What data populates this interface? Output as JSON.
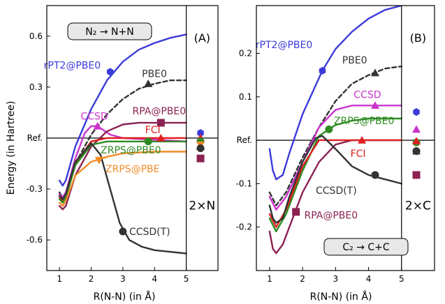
{
  "chart_data": [
    {
      "type": "line",
      "panel_label": "(A)",
      "title_box": "N₂ → N+N",
      "xlabel": "R(N-N) (in Å)",
      "ylabel": "Energy (in Hartree)",
      "xlim": [
        0.6,
        6.0
      ],
      "ylim": [
        -0.78,
        0.78
      ],
      "xticks": [
        "1",
        "2",
        "3",
        "4",
        "5"
      ],
      "xtick_values": [
        1,
        2,
        3,
        4,
        5
      ],
      "yticks": [
        "0.6",
        "0.3",
        "Ref.",
        "-0.3",
        "-0.6"
      ],
      "ytick_values": [
        0.6,
        0.3,
        0.0,
        -0.3,
        -0.6
      ],
      "ref_label": "Ref.",
      "separator_x": 5.0,
      "separated_label": "2×N",
      "series": [
        {
          "name": "rPT2@PBE0",
          "color": "#3b3bd9",
          "dash": false,
          "x": [
            1.0,
            1.1,
            1.2,
            1.5,
            2.0,
            2.5,
            3.0,
            3.5,
            4.0,
            4.5,
            5.0
          ],
          "y": [
            -0.25,
            -0.28,
            -0.25,
            -0.05,
            0.17,
            0.34,
            0.45,
            0.52,
            0.56,
            0.59,
            0.61
          ],
          "marker": "hexagon",
          "marker_x": 2.6,
          "marker_y": 0.39,
          "label_x": 2.3,
          "label_y": 0.43,
          "label_anchor": "end",
          "asymptote": 0.03
        },
        {
          "name": "PBE0",
          "color": "#333333",
          "dash": true,
          "x": [
            1.0,
            1.1,
            1.2,
            1.5,
            2.0,
            2.5,
            3.0,
            3.5,
            4.0,
            4.5,
            5.0
          ],
          "y": [
            -0.32,
            -0.35,
            -0.32,
            -0.15,
            0.02,
            0.14,
            0.23,
            0.29,
            0.32,
            0.34,
            0.34
          ],
          "marker": "triangle",
          "marker_x": 3.8,
          "marker_y": 0.32,
          "label_x": 3.6,
          "label_y": 0.38,
          "label_anchor": "start",
          "asymptote": -0.05
        },
        {
          "name": "CCSD",
          "color": "#cc33cc",
          "dash": false,
          "x": [
            1.0,
            1.1,
            1.2,
            1.5,
            1.8,
            2.0,
            2.2,
            2.6,
            3.0,
            4.0,
            5.0
          ],
          "y": [
            -0.33,
            -0.35,
            -0.32,
            -0.12,
            0.03,
            0.07,
            0.07,
            0.02,
            0.0,
            -0.01,
            -0.02
          ],
          "marker": "triangle",
          "marker_x": 2.2,
          "marker_y": 0.07,
          "label_x": 2.1,
          "label_y": 0.13,
          "label_anchor": "middle",
          "asymptote": 0.0
        },
        {
          "name": "RPA@PBE0",
          "color": "#8b2252",
          "dash": false,
          "x": [
            1.0,
            1.1,
            1.2,
            1.5,
            2.0,
            2.5,
            3.0,
            3.5,
            4.0,
            4.5,
            5.0
          ],
          "y": [
            -0.4,
            -0.42,
            -0.4,
            -0.22,
            -0.05,
            0.04,
            0.08,
            0.09,
            0.09,
            0.09,
            0.09
          ],
          "marker": "square",
          "marker_x": 4.2,
          "marker_y": 0.09,
          "label_x": 3.3,
          "label_y": 0.16,
          "label_anchor": "start",
          "asymptote": -0.12
        },
        {
          "name": "FCI",
          "color": "#e02020",
          "dash": false,
          "x": [
            1.0,
            1.1,
            1.2,
            1.5,
            2.0,
            2.5,
            3.0,
            4.0,
            5.0
          ],
          "y": [
            -0.35,
            -0.37,
            -0.34,
            -0.15,
            -0.02,
            0.0,
            0.0,
            0.0,
            0.0
          ],
          "marker": "triangle",
          "marker_x": 4.2,
          "marker_y": 0.0,
          "label_x": 3.7,
          "label_y": 0.05,
          "label_anchor": "start",
          "asymptote": 0.0
        },
        {
          "name": "ZRPS@PBE0",
          "color": "#2e8b22",
          "dash": false,
          "x": [
            1.0,
            1.1,
            1.2,
            1.5,
            2.0,
            2.5,
            3.0,
            4.0,
            5.0
          ],
          "y": [
            -0.36,
            -0.38,
            -0.35,
            -0.16,
            -0.04,
            -0.02,
            -0.02,
            -0.02,
            -0.02
          ],
          "marker": "circle",
          "marker_x": 3.8,
          "marker_y": -0.02,
          "label_x": 2.3,
          "label_y": -0.07,
          "label_anchor": "start",
          "asymptote": -0.02
        },
        {
          "name": "ZRPS@PBE",
          "color": "#f28c28",
          "dash": false,
          "x": [
            1.0,
            1.1,
            1.2,
            1.5,
            2.0,
            2.5,
            3.0,
            4.0,
            5.0
          ],
          "y": [
            -0.38,
            -0.4,
            -0.37,
            -0.22,
            -0.14,
            -0.11,
            -0.09,
            -0.08,
            -0.08
          ],
          "marker": "triangle-down",
          "marker_x": 2.25,
          "marker_y": -0.13,
          "label_x": 2.45,
          "label_y": -0.18,
          "label_anchor": "start",
          "asymptote": -0.04
        },
        {
          "name": "CCSD(T)",
          "color": "#333333",
          "dash": false,
          "x": [
            1.0,
            1.1,
            1.2,
            1.5,
            2.0,
            2.3,
            2.6,
            2.9,
            3.2,
            3.6,
            4.0,
            4.5,
            5.0
          ],
          "y": [
            -0.34,
            -0.36,
            -0.33,
            -0.14,
            -0.03,
            -0.1,
            -0.3,
            -0.5,
            -0.6,
            -0.64,
            -0.66,
            -0.67,
            -0.68
          ],
          "marker": "circle",
          "marker_x": 3.0,
          "marker_y": -0.55,
          "label_x": 3.2,
          "label_y": -0.55,
          "label_anchor": "start",
          "asymptote": -0.06
        }
      ]
    },
    {
      "type": "line",
      "panel_label": "(B)",
      "title_box": "C₂ → C+C",
      "xlabel": "R(N-N) (in Å)",
      "ylabel": "",
      "xlim": [
        0.6,
        6.0
      ],
      "ylim": [
        -0.3,
        0.31
      ],
      "xticks": [
        "1",
        "2",
        "3",
        "4",
        "5"
      ],
      "xtick_values": [
        1,
        2,
        3,
        4,
        5
      ],
      "yticks": [
        "0.2",
        "0.1",
        "Ref.",
        "-0.1",
        "-0.2"
      ],
      "ytick_values": [
        0.2,
        0.1,
        0.0,
        -0.1,
        -0.2
      ],
      "ref_label": "Ref.",
      "separator_x": 5.0,
      "separated_label": "2×C",
      "series": [
        {
          "name": "rPT2@PBE0",
          "color": "#3b3bd9",
          "dash": false,
          "x": [
            1.0,
            1.1,
            1.2,
            1.4,
            1.6,
            2.0,
            2.6,
            3.0,
            3.5,
            4.0,
            4.5,
            5.0
          ],
          "y": [
            -0.02,
            -0.07,
            -0.09,
            -0.08,
            -0.03,
            0.06,
            0.16,
            0.21,
            0.25,
            0.28,
            0.3,
            0.31
          ],
          "marker": "hexagon",
          "marker_x": 2.6,
          "marker_y": 0.16,
          "label_x": 2.3,
          "label_y": 0.22,
          "label_anchor": "end",
          "asymptote": 0.065
        },
        {
          "name": "PBE0",
          "color": "#333333",
          "dash": true,
          "x": [
            1.0,
            1.2,
            1.5,
            2.0,
            2.5,
            3.0,
            3.5,
            4.0,
            4.5,
            5.0
          ],
          "y": [
            -0.12,
            -0.15,
            -0.12,
            -0.04,
            0.03,
            0.09,
            0.13,
            0.15,
            0.165,
            0.17
          ],
          "marker": "triangle",
          "marker_x": 4.2,
          "marker_y": 0.155,
          "label_x": 3.2,
          "label_y": 0.185,
          "label_anchor": "start",
          "asymptote": -0.025
        },
        {
          "name": "CCSD",
          "color": "#cc33cc",
          "dash": false,
          "x": [
            1.0,
            1.2,
            1.5,
            2.0,
            2.5,
            3.0,
            3.5,
            4.0,
            4.5,
            5.0
          ],
          "y": [
            -0.13,
            -0.16,
            -0.13,
            -0.05,
            0.03,
            0.07,
            0.08,
            0.08,
            0.08,
            0.08
          ],
          "marker": "triangle",
          "marker_x": 4.2,
          "marker_y": 0.08,
          "label_x": 3.55,
          "label_y": 0.105,
          "label_anchor": "start",
          "asymptote": 0.025
        },
        {
          "name": "ZRPS@PBE0",
          "color": "#2e8b22",
          "dash": false,
          "x": [
            1.0,
            1.2,
            1.5,
            2.0,
            2.5,
            3.0,
            3.5,
            4.0,
            4.5,
            5.0
          ],
          "y": [
            -0.18,
            -0.21,
            -0.17,
            -0.07,
            0.01,
            0.035,
            0.045,
            0.05,
            0.05,
            0.05
          ],
          "marker": "circle",
          "marker_x": 2.8,
          "marker_y": 0.025,
          "label_x": 2.95,
          "label_y": 0.045,
          "label_anchor": "start",
          "asymptote": -0.005
        },
        {
          "name": "RPA@PBE0",
          "color": "#8b2252",
          "dash": false,
          "x": [
            1.0,
            1.1,
            1.2,
            1.4,
            1.6,
            2.0,
            2.5,
            3.0,
            3.5,
            4.0,
            4.5,
            5.0
          ],
          "y": [
            -0.21,
            -0.25,
            -0.26,
            -0.24,
            -0.2,
            -0.12,
            -0.05,
            -0.01,
            0.0,
            0.0,
            0.0,
            0.0
          ],
          "marker": "square",
          "marker_x": 1.8,
          "marker_y": -0.165,
          "label_x": 2.05,
          "label_y": -0.172,
          "label_anchor": "start",
          "asymptote": -0.08
        },
        {
          "name": "FCI",
          "color": "#e02020",
          "dash": false,
          "x": [
            1.0,
            1.2,
            1.5,
            2.0,
            2.5,
            3.0,
            4.0,
            5.0
          ],
          "y": [
            -0.17,
            -0.2,
            -0.16,
            -0.06,
            0.0,
            0.0,
            0.0,
            0.0
          ],
          "marker": "triangle",
          "marker_x": 3.8,
          "marker_y": 0.0,
          "label_x": 3.45,
          "label_y": -0.03,
          "label_anchor": "start",
          "asymptote": -0.002
        },
        {
          "name": "CCSD(T)",
          "color": "#333333",
          "dash": false,
          "x": [
            1.0,
            1.1,
            1.2,
            1.4,
            1.6,
            2.0,
            2.4,
            2.6,
            3.0,
            3.5,
            4.0,
            4.5,
            5.0
          ],
          "y": [
            -0.15,
            -0.18,
            -0.19,
            -0.18,
            -0.13,
            -0.05,
            0.005,
            0.01,
            -0.02,
            -0.06,
            -0.08,
            -0.09,
            -0.1
          ],
          "marker": "circle",
          "marker_x": 4.2,
          "marker_y": -0.08,
          "label_x": 2.4,
          "label_y": -0.115,
          "label_anchor": "start",
          "asymptote": -0.025
        }
      ]
    }
  ]
}
